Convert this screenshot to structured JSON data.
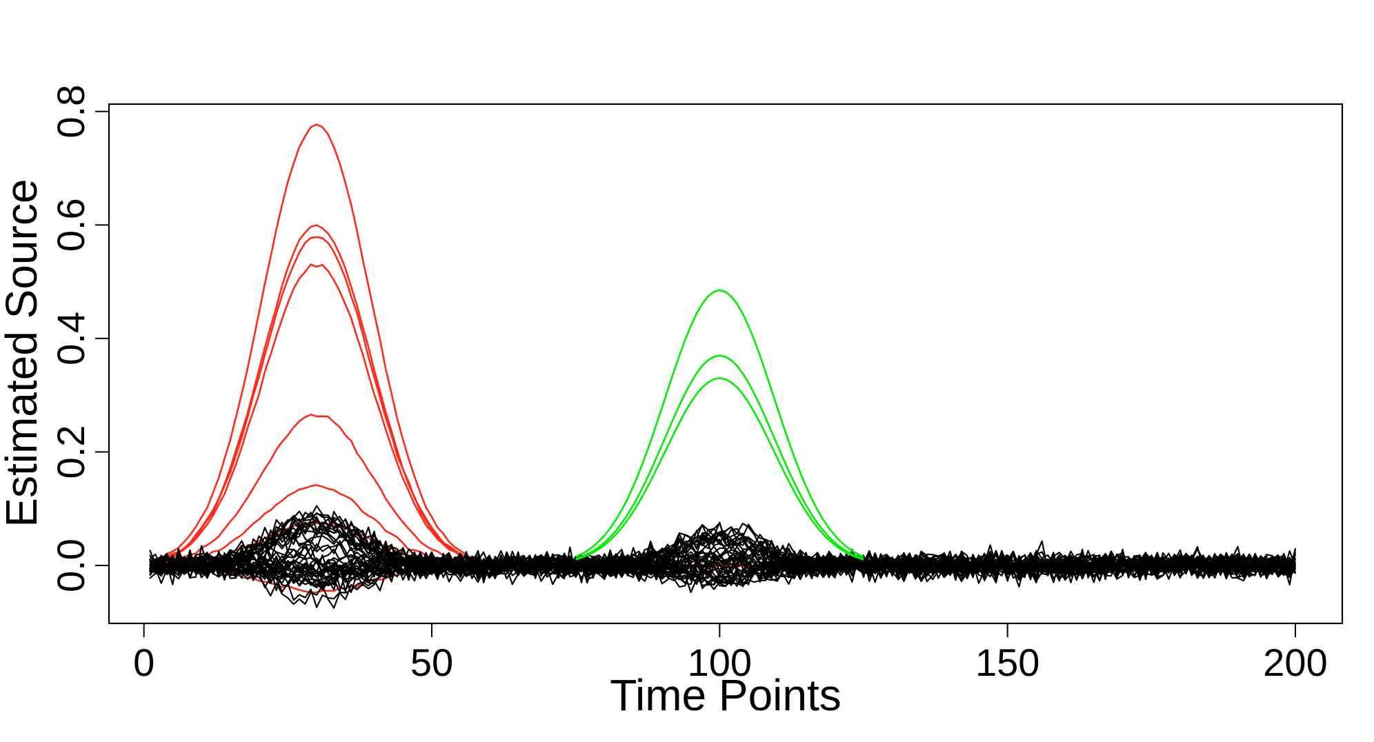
{
  "chart_data": {
    "type": "line",
    "title": "",
    "xlabel": "Time Points",
    "ylabel": "Estimated Source",
    "xlim": [
      1,
      200
    ],
    "ylim": [
      -0.1,
      0.8
    ],
    "x_ticks": [
      0,
      50,
      100,
      150,
      200
    ],
    "x_tick_labels": [
      "0",
      "50",
      "100",
      "150",
      "200"
    ],
    "y_ticks": [
      0.0,
      0.2,
      0.4,
      0.6,
      0.8
    ],
    "y_tick_labels": [
      "0.0",
      "0.2",
      "0.4",
      "0.6",
      "0.8"
    ],
    "grid": false,
    "legend": "none",
    "colors": {
      "red_group": "#ff2a1a",
      "green_group": "#00ee00",
      "noise_group": "#000000"
    },
    "groups": [
      {
        "color": "red_group",
        "shape": "gaussian",
        "center": 30,
        "width_sd": 9.5,
        "support": [
          1,
          56
        ],
        "peaks": [
          0.775,
          0.6,
          0.58,
          0.53,
          0.265,
          0.14,
          0.075,
          -0.045
        ]
      },
      {
        "color": "green_group",
        "shape": "gaussian",
        "center": 100,
        "width_sd": 9.5,
        "support": [
          75,
          125
        ],
        "peaks": [
          0.485,
          0.37,
          0.33
        ]
      }
    ],
    "noise_series": {
      "color": "noise_group",
      "count": 40,
      "x_range": [
        1,
        200
      ],
      "noise_sd": 0.01,
      "bump_centers": [
        30,
        100
      ],
      "bump_peak_range": [
        -0.06,
        0.09
      ]
    }
  }
}
